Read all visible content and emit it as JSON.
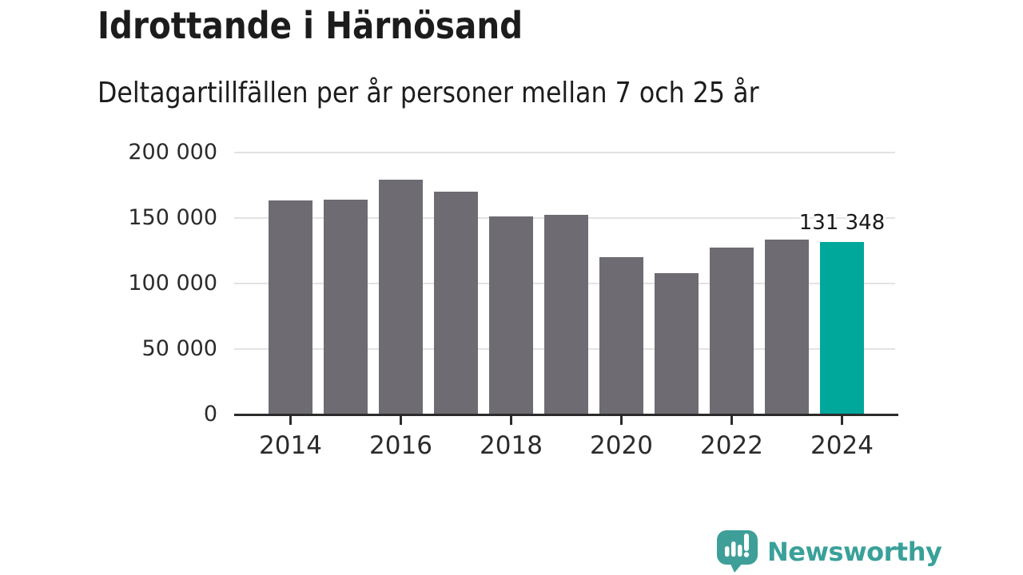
{
  "header": {
    "title": "Idrottande i Härnösand",
    "subtitle": "Deltagartillfällen per år personer mellan 7 och 25 år"
  },
  "chart_data": {
    "type": "bar",
    "title": "Idrottande i Härnösand",
    "subtitle": "Deltagartillfällen per år personer mellan 7 och 25 år",
    "categories": [
      "2014",
      "2015",
      "2016",
      "2017",
      "2018",
      "2019",
      "2020",
      "2021",
      "2022",
      "2023",
      "2024"
    ],
    "values": [
      163000,
      163500,
      179000,
      170000,
      151000,
      152000,
      120000,
      107500,
      127500,
      133500,
      131348
    ],
    "highlight_index": 10,
    "annotation": {
      "text": "131 348",
      "index": 10
    },
    "ylim": [
      0,
      200000
    ],
    "y_ticks": [
      {
        "value": 0,
        "label": "0"
      },
      {
        "value": 50000,
        "label": "50 000"
      },
      {
        "value": 100000,
        "label": "100 000"
      },
      {
        "value": 150000,
        "label": "150 000"
      },
      {
        "value": 200000,
        "label": "200 000"
      }
    ],
    "x_tick_labels": [
      "2014",
      "2016",
      "2018",
      "2020",
      "2022",
      "2024"
    ],
    "grid": "horizontal",
    "legend": "none"
  },
  "colors": {
    "bar": "#6e6c72",
    "highlight": "#00a79b",
    "gridline": "#e3e3e3",
    "axis": "#2b2b2b",
    "title_text": "#1c1c1c",
    "logo_bubble": "#3e9f99",
    "brand_text": "#3aa09a"
  },
  "footer": {
    "brand": "Newsworthy"
  }
}
